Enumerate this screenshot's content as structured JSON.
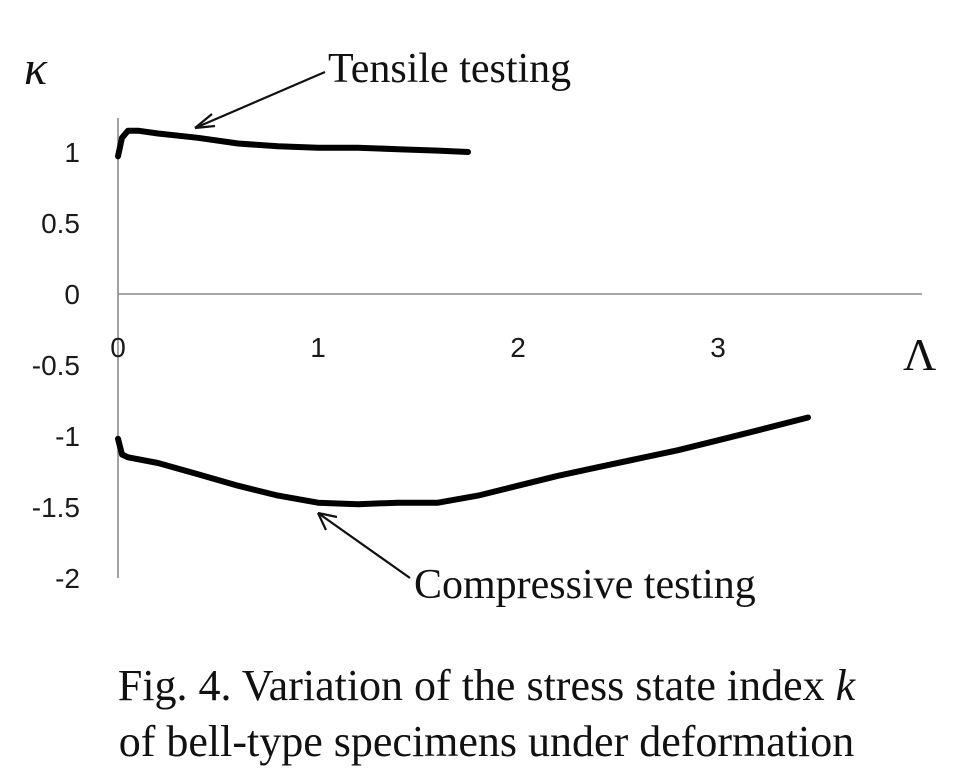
{
  "chart_data": {
    "type": "line",
    "ylabel": "κ",
    "xlabel": "Λ",
    "xlim": [
      0,
      4
    ],
    "ylim": [
      -2,
      1.3
    ],
    "x_ticks": [
      "0",
      "1",
      "2",
      "3"
    ],
    "y_ticks": [
      "1",
      "0.5",
      "0",
      "-0.5",
      "-1",
      "-1.5",
      "-2"
    ],
    "grid": false,
    "series": [
      {
        "name": "Tensile testing",
        "x": [
          0.0,
          0.02,
          0.05,
          0.1,
          0.2,
          0.4,
          0.6,
          0.8,
          1.0,
          1.2,
          1.4,
          1.6,
          1.75
        ],
        "y": [
          0.97,
          1.1,
          1.15,
          1.15,
          1.13,
          1.1,
          1.06,
          1.04,
          1.03,
          1.03,
          1.02,
          1.01,
          1.0
        ]
      },
      {
        "name": "Compressive testing",
        "x": [
          0.0,
          0.02,
          0.05,
          0.2,
          0.4,
          0.6,
          0.8,
          1.0,
          1.2,
          1.4,
          1.6,
          1.8,
          2.0,
          2.2,
          2.4,
          2.6,
          2.8,
          3.0,
          3.2,
          3.45
        ],
        "y": [
          -1.02,
          -1.13,
          -1.15,
          -1.19,
          -1.27,
          -1.35,
          -1.42,
          -1.47,
          -1.48,
          -1.47,
          -1.47,
          -1.42,
          -1.35,
          -1.28,
          -1.22,
          -1.16,
          -1.1,
          -1.03,
          -0.96,
          -0.87
        ]
      }
    ],
    "annotations": [
      "Tensile testing",
      "Compressive testing"
    ]
  },
  "caption": {
    "line1": "Fig. 4. Variation of the stress state index ",
    "line1_var": "k",
    "line2": "of bell-type specimens under deformation"
  }
}
